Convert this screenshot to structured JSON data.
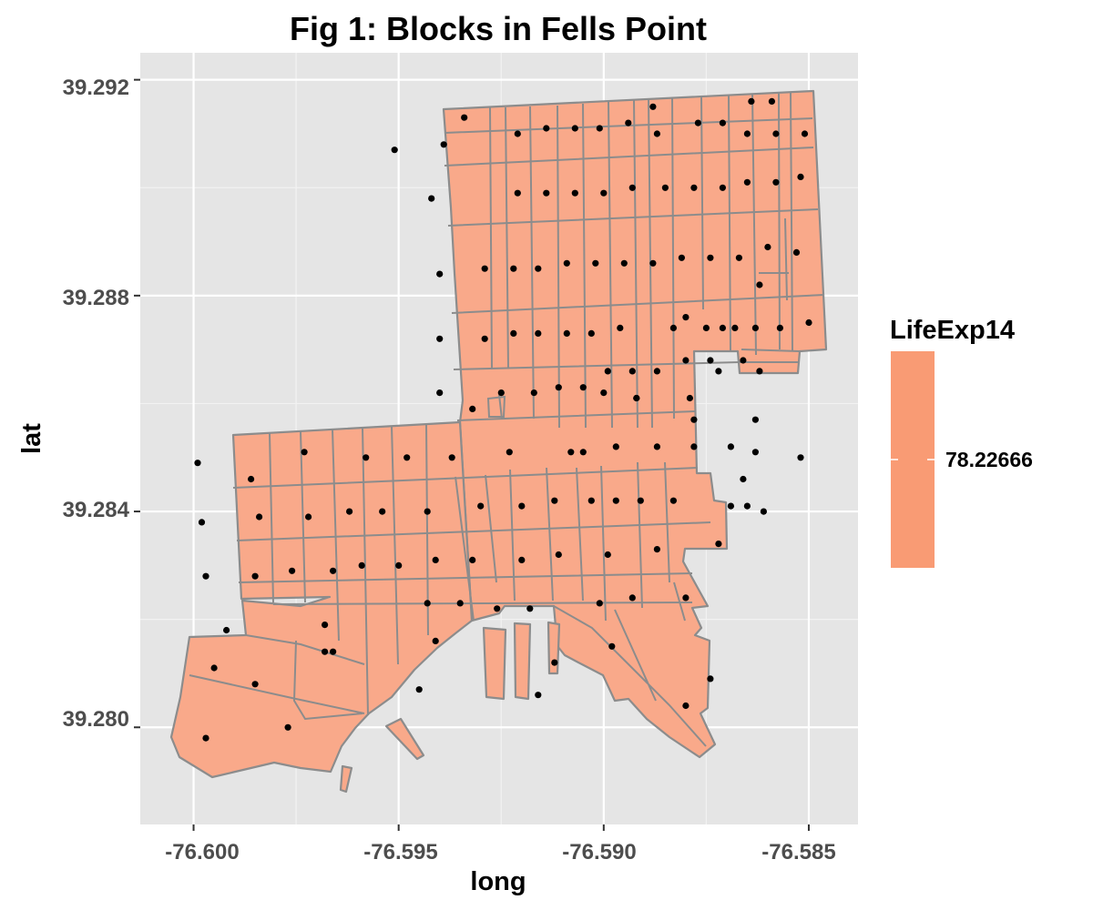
{
  "chart_data": {
    "type": "map",
    "title": "Fig 1: Blocks in Fells Point",
    "xlabel": "long",
    "ylabel": "lat",
    "xlim": [
      -76.6013,
      -76.5838
    ],
    "ylim": [
      39.2782,
      39.2925
    ],
    "x_ticks": [
      -76.6,
      -76.595,
      -76.59,
      -76.585
    ],
    "x_tick_labels": [
      "-76.600",
      "-76.595",
      "-76.590",
      "-76.585"
    ],
    "y_ticks": [
      39.28,
      39.284,
      39.288,
      39.292
    ],
    "y_tick_labels": [
      "39.280",
      "39.284",
      "39.288",
      "39.292"
    ],
    "grid": true,
    "fill_color": "#F9A98A",
    "border_color": "#8c8c8c",
    "panel_background": "#e5e5e5",
    "point_color": "#000000",
    "legend": {
      "title": "LifeExp14",
      "label": "78.22666",
      "color": "#F99B74",
      "placement": "right"
    },
    "centroids": [
      [
        -76.5934,
        39.2913
      ],
      [
        -76.5951,
        39.2907
      ],
      [
        -76.5939,
        39.2908
      ],
      [
        -76.5921,
        39.291
      ],
      [
        -76.5914,
        39.2911
      ],
      [
        -76.5907,
        39.2911
      ],
      [
        -76.5901,
        39.2911
      ],
      [
        -76.5894,
        39.2912
      ],
      [
        -76.5888,
        39.2915
      ],
      [
        -76.5887,
        39.291
      ],
      [
        -76.5877,
        39.2912
      ],
      [
        -76.5871,
        39.2912
      ],
      [
        -76.5864,
        39.2916
      ],
      [
        -76.5865,
        39.291
      ],
      [
        -76.5859,
        39.2916
      ],
      [
        -76.5858,
        39.291
      ],
      [
        -76.5851,
        39.291
      ],
      [
        -76.5942,
        39.2898
      ],
      [
        -76.5921,
        39.2899
      ],
      [
        -76.5914,
        39.2899
      ],
      [
        -76.5907,
        39.2899
      ],
      [
        -76.59,
        39.2899
      ],
      [
        -76.5893,
        39.29
      ],
      [
        -76.5885,
        39.29
      ],
      [
        -76.5878,
        39.29
      ],
      [
        -76.5871,
        39.29
      ],
      [
        -76.5865,
        39.2901
      ],
      [
        -76.5858,
        39.2901
      ],
      [
        -76.5852,
        39.2902
      ],
      [
        -76.594,
        39.2884
      ],
      [
        -76.5929,
        39.2885
      ],
      [
        -76.5922,
        39.2885
      ],
      [
        -76.5916,
        39.2885
      ],
      [
        -76.5909,
        39.2886
      ],
      [
        -76.5902,
        39.2886
      ],
      [
        -76.5895,
        39.2886
      ],
      [
        -76.5888,
        39.2886
      ],
      [
        -76.5881,
        39.2887
      ],
      [
        -76.5874,
        39.2887
      ],
      [
        -76.5867,
        39.2887
      ],
      [
        -76.586,
        39.2889
      ],
      [
        -76.5853,
        39.2888
      ],
      [
        -76.5862,
        39.2882
      ],
      [
        -76.594,
        39.2872
      ],
      [
        -76.5929,
        39.2872
      ],
      [
        -76.5922,
        39.2873
      ],
      [
        -76.5916,
        39.2873
      ],
      [
        -76.5909,
        39.2873
      ],
      [
        -76.5903,
        39.2873
      ],
      [
        -76.5896,
        39.2874
      ],
      [
        -76.5883,
        39.2874
      ],
      [
        -76.588,
        39.2876
      ],
      [
        -76.5875,
        39.2874
      ],
      [
        -76.5871,
        39.2874
      ],
      [
        -76.5868,
        39.2874
      ],
      [
        -76.5863,
        39.2874
      ],
      [
        -76.5857,
        39.2874
      ],
      [
        -76.585,
        39.2875
      ],
      [
        -76.594,
        39.2862
      ],
      [
        -76.5932,
        39.2859
      ],
      [
        -76.5925,
        39.2862
      ],
      [
        -76.5917,
        39.2862
      ],
      [
        -76.5911,
        39.2863
      ],
      [
        -76.5905,
        39.2863
      ],
      [
        -76.5899,
        39.2866
      ],
      [
        -76.5893,
        39.2866
      ],
      [
        -76.5887,
        39.2866
      ],
      [
        -76.588,
        39.2868
      ],
      [
        -76.5874,
        39.2868
      ],
      [
        -76.5866,
        39.2868
      ],
      [
        -76.5862,
        39.2866
      ],
      [
        -76.5872,
        39.2866
      ],
      [
        -76.5892,
        39.2861
      ],
      [
        -76.5879,
        39.2861
      ],
      [
        -76.59,
        39.2862
      ],
      [
        -76.5892,
        39.2861
      ],
      [
        -76.5878,
        39.2857
      ],
      [
        -76.5863,
        39.2857
      ],
      [
        -76.5999,
        39.2849
      ],
      [
        -76.5973,
        39.2851
      ],
      [
        -76.5958,
        39.285
      ],
      [
        -76.5948,
        39.285
      ],
      [
        -76.5937,
        39.285
      ],
      [
        -76.5923,
        39.2851
      ],
      [
        -76.5905,
        39.2851
      ],
      [
        -76.5908,
        39.2851
      ],
      [
        -76.5897,
        39.2852
      ],
      [
        -76.5887,
        39.2852
      ],
      [
        -76.5878,
        39.2852
      ],
      [
        -76.5869,
        39.2852
      ],
      [
        -76.5863,
        39.2851
      ],
      [
        -76.5852,
        39.285
      ],
      [
        -76.5986,
        39.2846
      ],
      [
        -76.5866,
        39.2846
      ],
      [
        -76.5998,
        39.2838
      ],
      [
        -76.5984,
        39.2839
      ],
      [
        -76.5972,
        39.2839
      ],
      [
        -76.5962,
        39.284
      ],
      [
        -76.5954,
        39.284
      ],
      [
        -76.5943,
        39.284
      ],
      [
        -76.593,
        39.2841
      ],
      [
        -76.592,
        39.2841
      ],
      [
        -76.5912,
        39.2842
      ],
      [
        -76.5903,
        39.2842
      ],
      [
        -76.5897,
        39.2842
      ],
      [
        -76.5891,
        39.2842
      ],
      [
        -76.5883,
        39.2842
      ],
      [
        -76.5869,
        39.2841
      ],
      [
        -76.5865,
        39.2841
      ],
      [
        -76.5861,
        39.284
      ],
      [
        -76.5997,
        39.2828
      ],
      [
        -76.5985,
        39.2828
      ],
      [
        -76.5976,
        39.2829
      ],
      [
        -76.5966,
        39.2829
      ],
      [
        -76.5959,
        39.283
      ],
      [
        -76.595,
        39.283
      ],
      [
        -76.5941,
        39.2831
      ],
      [
        -76.5932,
        39.2831
      ],
      [
        -76.592,
        39.2831
      ],
      [
        -76.5911,
        39.2832
      ],
      [
        -76.5899,
        39.2832
      ],
      [
        -76.5887,
        39.2833
      ],
      [
        -76.5872,
        39.2834
      ],
      [
        -76.5992,
        39.2818
      ],
      [
        -76.5968,
        39.2819
      ],
      [
        -76.5943,
        39.2823
      ],
      [
        -76.5935,
        39.2823
      ],
      [
        -76.5926,
        39.2822
      ],
      [
        -76.5918,
        39.2822
      ],
      [
        -76.5901,
        39.2823
      ],
      [
        -76.5893,
        39.2824
      ],
      [
        -76.588,
        39.2824
      ],
      [
        -76.5941,
        39.2816
      ],
      [
        -76.5966,
        39.2814
      ],
      [
        -76.5912,
        39.2812
      ],
      [
        -76.5898,
        39.2815
      ],
      [
        -76.5995,
        39.2811
      ],
      [
        -76.5968,
        39.2814
      ],
      [
        -76.5945,
        39.2807
      ],
      [
        -76.5916,
        39.2806
      ],
      [
        -76.5874,
        39.2809
      ],
      [
        -76.588,
        39.2804
      ],
      [
        -76.5997,
        39.2798
      ],
      [
        -76.5977,
        39.28
      ],
      [
        -76.5985,
        39.2808
      ]
    ]
  }
}
